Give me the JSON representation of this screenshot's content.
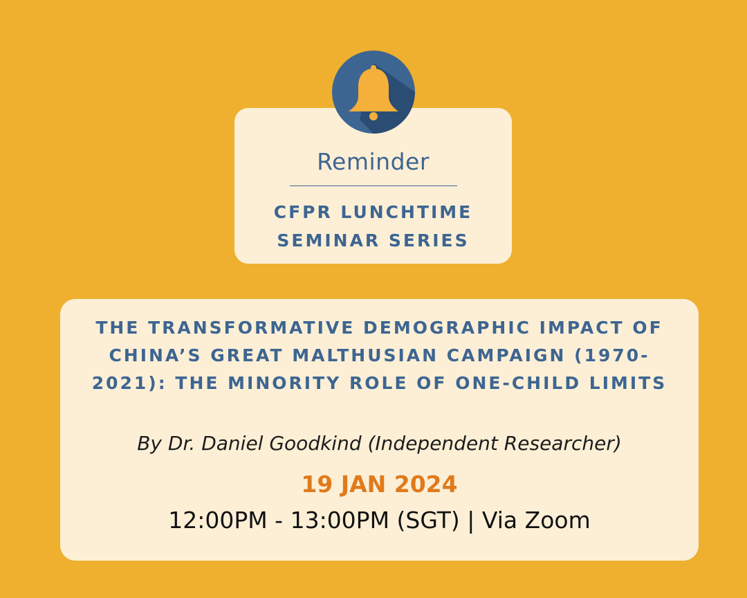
{
  "colors": {
    "background": "#EEB02E",
    "card": "#FCEFD6",
    "primary_text": "#3D6591",
    "accent_date": "#E07A1B",
    "body_text": "#111111",
    "badge_circle": "#3D6591",
    "badge_shadow": "#2B4D73",
    "bell": "#F4B03A"
  },
  "badge": {
    "icon": "bell-icon"
  },
  "reminder": {
    "heading": "Reminder",
    "series_title": "CFPR LUNCHTIME SEMINAR SERIES"
  },
  "event": {
    "title": "THE TRANSFORMATIVE DEMOGRAPHIC IMPACT OF CHINA’S GREAT MALTHUSIAN CAMPAIGN (1970-2021): THE MINORITY ROLE OF ONE-CHILD LIMITS",
    "speaker": "By Dr. Daniel Goodkind (Independent Researcher)",
    "date": "19 JAN 2024",
    "time_venue": "12:00PM - 13:00PM (SGT) | Via Zoom"
  }
}
